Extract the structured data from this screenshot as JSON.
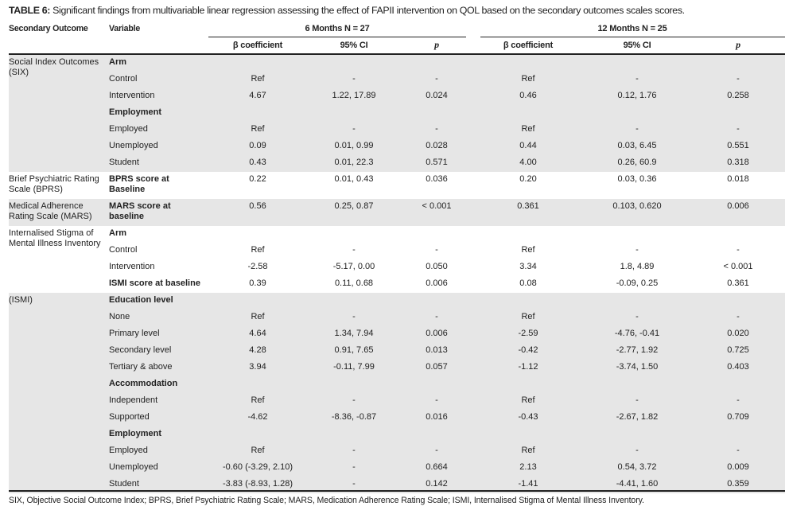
{
  "title": {
    "label": "TABLE 6:",
    "text": "Significant findings from multivariable linear regression assessing the effect of FAPII intervention on QOL based on the secondary outcomes scales scores."
  },
  "header": {
    "secondary_outcome": "Secondary Outcome",
    "variable": "Variable",
    "period_6": "6 Months N = 27",
    "period_12": "12 Months N = 25",
    "beta": "β coefficient",
    "ci": "95% CI",
    "p": "p"
  },
  "colors": {
    "band_gray": "#e6e6e6",
    "rule": "#222222"
  },
  "groups": [
    {
      "outcome": "Social Index Outcomes (SIX)",
      "shaded": true,
      "rows": [
        {
          "var": "Arm",
          "bold": true,
          "vals": [
            "",
            "",
            "",
            "",
            "",
            ""
          ]
        },
        {
          "var": "Control",
          "vals": [
            "Ref",
            "-",
            "-",
            "Ref",
            "-",
            "-"
          ]
        },
        {
          "var": "Intervention",
          "vals": [
            "4.67",
            "1.22, 17.89",
            "0.024",
            "0.46",
            "0.12, 1.76",
            "0.258"
          ]
        },
        {
          "var": "Employment",
          "bold": true,
          "vals": [
            "",
            "",
            "",
            "",
            "",
            ""
          ]
        },
        {
          "var": "Employed",
          "vals": [
            "Ref",
            "-",
            "-",
            "Ref",
            "-",
            "-"
          ]
        },
        {
          "var": "Unemployed",
          "vals": [
            "0.09",
            "0.01, 0.99",
            "0.028",
            "0.44",
            "0.03, 6.45",
            "0.551"
          ]
        },
        {
          "var": "Student",
          "vals": [
            "0.43",
            "0.01, 22.3",
            "0.571",
            "4.00",
            "0.26, 60.9",
            "0.318"
          ]
        }
      ]
    },
    {
      "outcome": "Brief Psychiatric Rating Scale (BPRS)",
      "shaded": false,
      "rows": [
        {
          "var": "BPRS score at Baseline",
          "bold": true,
          "tall": true,
          "vals": [
            "0.22",
            "0.01, 0.43",
            "0.036",
            "0.20",
            "0.03, 0.36",
            "0.018"
          ]
        }
      ]
    },
    {
      "outcome": "Medical Adherence Rating Scale (MARS)",
      "shaded": true,
      "rows": [
        {
          "var": "MARS score at baseline",
          "bold": true,
          "tall": true,
          "vals": [
            "0.56",
            "0.25, 0.87",
            "< 0.001",
            "0.361",
            "0.103, 0.620",
            "0.006"
          ]
        }
      ]
    },
    {
      "outcome": "Internalised Stigma of Mental Illness Inventory",
      "shaded": false,
      "rows": [
        {
          "var": "Arm",
          "bold": true,
          "vals": [
            "",
            "",
            "",
            "",
            "",
            ""
          ]
        },
        {
          "var": "Control",
          "vals": [
            "Ref",
            "-",
            "-",
            "Ref",
            "-",
            "-"
          ]
        },
        {
          "var": "Intervention",
          "vals": [
            "-2.58",
            "-5.17, 0.00",
            "0.050",
            "3.34",
            "1.8, 4.89",
            "< 0.001"
          ]
        },
        {
          "var": "ISMI score at baseline",
          "bold": true,
          "vals": [
            "0.39",
            "0.11, 0.68",
            "0.006",
            "0.08",
            "-0.09, 0.25",
            "0.361"
          ]
        }
      ]
    },
    {
      "outcome": "(ISMI)",
      "shaded": true,
      "rows": [
        {
          "var": "Education level",
          "bold": true,
          "vals": [
            "",
            "",
            "",
            "",
            "",
            ""
          ]
        },
        {
          "var": "None",
          "vals": [
            "Ref",
            "-",
            "-",
            "Ref",
            "-",
            "-"
          ]
        },
        {
          "var": "Primary level",
          "vals": [
            "4.64",
            "1.34, 7.94",
            "0.006",
            "-2.59",
            "-4.76, -0.41",
            "0.020"
          ]
        },
        {
          "var": "Secondary level",
          "vals": [
            "4.28",
            "0.91, 7.65",
            "0.013",
            "-0.42",
            "-2.77, 1.92",
            "0.725"
          ]
        },
        {
          "var": "Tertiary & above",
          "vals": [
            "3.94",
            "-0.11, 7.99",
            "0.057",
            "-1.12",
            "-3.74, 1.50",
            "0.403"
          ]
        },
        {
          "var": "Accommodation",
          "bold": true,
          "vals": [
            "",
            "",
            "",
            "",
            "",
            ""
          ]
        },
        {
          "var": "Independent",
          "vals": [
            "Ref",
            "-",
            "-",
            "Ref",
            "-",
            "-"
          ]
        },
        {
          "var": "Supported",
          "vals": [
            "-4.62",
            "-8.36, -0.87",
            "0.016",
            "-0.43",
            "-2.67, 1.82",
            "0.709"
          ]
        },
        {
          "var": "Employment",
          "bold": true,
          "vals": [
            "",
            "",
            "",
            "",
            "",
            ""
          ]
        },
        {
          "var": "Employed",
          "vals": [
            "Ref",
            "-",
            "-",
            "Ref",
            "-",
            "-"
          ]
        },
        {
          "var": "Unemployed",
          "vals": [
            "-0.60 (-3.29, 2.10)",
            "-",
            "0.664",
            "2.13",
            "0.54, 3.72",
            "0.009"
          ]
        },
        {
          "var": "Student",
          "vals": [
            "-3.83 (-8.93, 1.28)",
            "-",
            "0.142",
            "-1.41",
            "-4.41, 1.60",
            "0.359"
          ]
        }
      ]
    }
  ],
  "footnote": "SIX, Objective Social Outcome Index; BPRS, Brief Psychiatric Rating Scale; MARS, Medication Adherence Rating Scale; ISMI, Internalised Stigma of Mental Illness Inventory."
}
